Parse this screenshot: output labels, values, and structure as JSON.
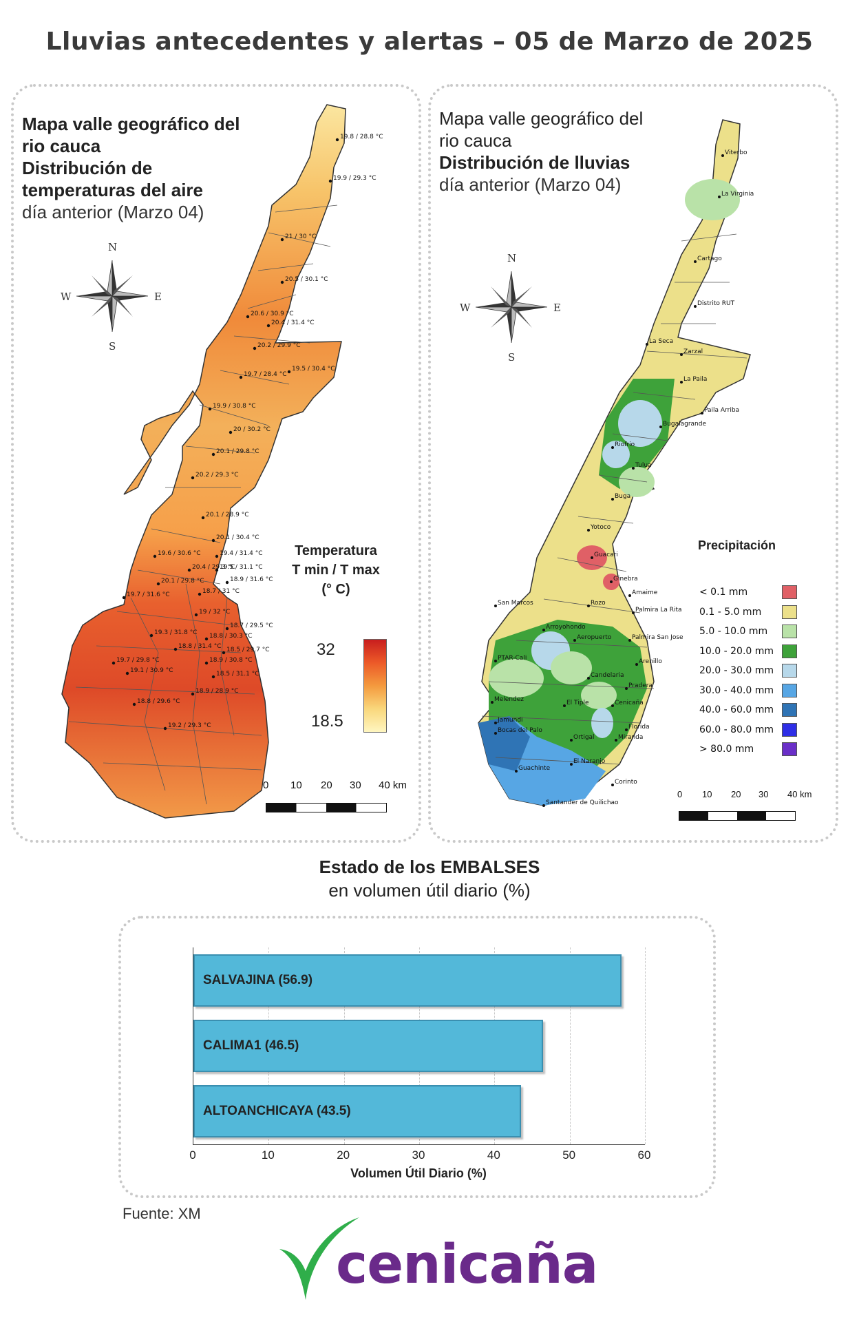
{
  "title": "Lluvias antecedentes y alertas – 05 de Marzo de 2025",
  "temperature_map": {
    "title_line1": "Mapa valle geográfico del",
    "title_line2": "rio cauca",
    "title_line3": "Distribución de",
    "title_line4": "temperaturas del aire",
    "subtitle": "día anterior (Marzo 04)",
    "compass": {
      "n": "N",
      "s": "S",
      "e": "E",
      "w": "W"
    },
    "legend": {
      "title1": "Temperatura",
      "title2": "T min / T max",
      "title3": "(° C)",
      "max": "32",
      "min": "18.5"
    },
    "scale": {
      "ticks": [
        "0",
        "10",
        "20",
        "30",
        "40 km"
      ]
    },
    "stations": [
      "19.8 / 28.8 °C",
      "19.9 / 29.3 °C",
      "21 / 30 °C",
      "20.5 / 30.1 °C",
      "20.6 / 30.9 °C",
      "20.4 / 31.4 °C",
      "20.2 / 29.9 °C",
      "19.5 / 30.4 °C",
      "19.7 / 28.4 °C",
      "19.9 / 30.8 °C",
      "20 / 30.2 °C",
      "20.1 / 29.8 °C",
      "20.2 / 29.3 °C",
      "20.1 / 28.9 °C",
      "20.1 / 30.4 °C",
      "19.4 / 31.4 °C",
      "19.6 / 30.6 °C",
      "20.4 / 29.3 °C",
      "19.5 / 31.1 °C",
      "20.1 / 29.8 °C",
      "18.9 / 31.6 °C",
      "18.7 / 31 °C",
      "19.7 / 31.6 °C",
      "19 / 32 °C",
      "18.7 / 29.5 °C",
      "19.3 / 31.8 °C",
      "18.8 / 30.3 °C",
      "18.8 / 31.4 °C",
      "18.5 / 29.7 °C",
      "19.7 / 29.8 °C",
      "18.9 / 30.8 °C",
      "19.1 / 30.9 °C",
      "18.5 / 31.1 °C",
      "18.9 / 28.9 °C",
      "18.8 / 29.6 °C",
      "19.2 / 29.3 °C"
    ]
  },
  "rain_map": {
    "title_line1": "Mapa valle geográfico del",
    "title_line2": "rio cauca",
    "title_line3": "Distribución de lluvias",
    "subtitle": "día anterior (Marzo 04)",
    "compass": {
      "n": "N",
      "s": "S",
      "e": "E",
      "w": "W"
    },
    "legend_title": "Precipitación",
    "legend": [
      {
        "label": "< 0.1 mm",
        "color": "#e06066"
      },
      {
        "label": "0.1 - 5.0 mm",
        "color": "#ece08a"
      },
      {
        "label": "5.0 - 10.0 mm",
        "color": "#b9e2a8"
      },
      {
        "label": "10.0 - 20.0 mm",
        "color": "#3ea23a"
      },
      {
        "label": "20.0 - 30.0 mm",
        "color": "#b7d8ea"
      },
      {
        "label": "30.0 - 40.0 mm",
        "color": "#57a6e4"
      },
      {
        "label": "40.0 - 60.0 mm",
        "color": "#2f74b5"
      },
      {
        "label": "60.0 - 80.0 mm",
        "color": "#2e2ee6"
      },
      {
        "label": "> 80.0 mm",
        "color": "#6a2fc8"
      }
    ],
    "scale": {
      "ticks": [
        "0",
        "10",
        "20",
        "30",
        "40 km"
      ]
    },
    "stations": [
      "Viterbo",
      "La Virginia",
      "Cartago",
      "Distrito RUT",
      "La Seca",
      "Zarzal",
      "La Paila",
      "Paila Arriba",
      "Bugalagrande",
      "Riofrio",
      "Tulua",
      "Buga",
      "Yotoco",
      "Guacari",
      "Ginebra",
      "Amaime",
      "San Marcos",
      "Rozo",
      "Palmira La Rita",
      "Arroyohondo",
      "Aeropuerto",
      "Palmira San Jose",
      "PTAR-Cali",
      "Arenillo",
      "Candelaria",
      "Pradera",
      "Melendez",
      "El Tiple",
      "Cenicaña",
      "Florida",
      "Jamundi",
      "Bocas del Palo",
      "Ortigal",
      "Miranda",
      "El Naranjo",
      "Guachinte",
      "Corinto",
      "Santander de Quilichao"
    ]
  },
  "reservoirs": {
    "title": "Estado de los EMBALSES",
    "subtitle": "en volumen útil diario (%)",
    "source": "Fuente: XM",
    "chart_data": {
      "type": "bar",
      "orientation": "horizontal",
      "categories": [
        "SALVAJINA (56.9)",
        "CALIMA1 (46.5)",
        "ALTOANCHICAYA (43.5)"
      ],
      "values": [
        56.9,
        46.5,
        43.5
      ],
      "xlabel": "Volumen Útil Diario (%)",
      "xlim": [
        0,
        60
      ],
      "xticks": [
        "0",
        "10",
        "20",
        "30",
        "40",
        "50",
        "60"
      ],
      "color": "#53b8d9"
    }
  },
  "logo": {
    "text": "cenicaña",
    "color": "#6a2a8a",
    "mark_color": "#2fae4a"
  }
}
